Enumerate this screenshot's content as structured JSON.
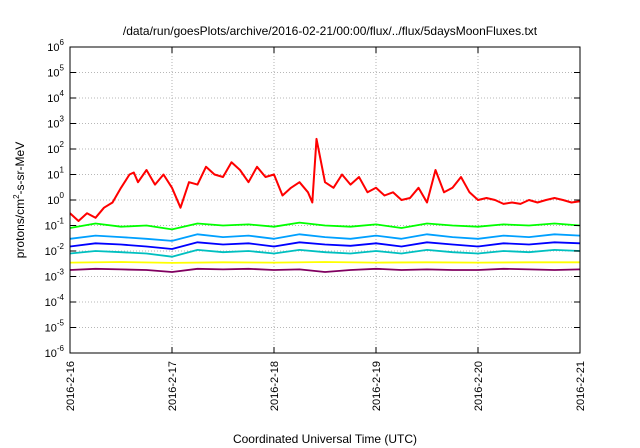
{
  "chart_data": {
    "type": "line",
    "title": "/data/run/goesPlots/archive/2016-02-21/00:00/flux/../flux/5daysMoonFluxes.txt",
    "xlabel": "Coordinated Universal Time (UTC)",
    "ylabel": "protons/cm²-s-sr-MeV",
    "ylabel_parts": {
      "pre": "protons/cm",
      "sup": "2",
      "post": "-s-sr-MeV"
    },
    "y_scale": "log",
    "ylim": [
      1e-06,
      1000000.0
    ],
    "y_ticks": [
      {
        "value": 1e-06,
        "base": "10",
        "exp": "-6"
      },
      {
        "value": 1e-05,
        "base": "10",
        "exp": "-5"
      },
      {
        "value": 0.0001,
        "base": "10",
        "exp": "-4"
      },
      {
        "value": 0.001,
        "base": "10",
        "exp": "-3"
      },
      {
        "value": 0.01,
        "base": "10",
        "exp": "-2"
      },
      {
        "value": 0.1,
        "base": "10",
        "exp": "-1"
      },
      {
        "value": 1.0,
        "base": "10",
        "exp": "0"
      },
      {
        "value": 10.0,
        "base": "10",
        "exp": "1"
      },
      {
        "value": 100.0,
        "base": "10",
        "exp": "2"
      },
      {
        "value": 1000.0,
        "base": "10",
        "exp": "3"
      },
      {
        "value": 10000.0,
        "base": "10",
        "exp": "4"
      },
      {
        "value": 100000.0,
        "base": "10",
        "exp": "5"
      },
      {
        "value": 1000000.0,
        "base": "10",
        "exp": "6"
      }
    ],
    "x_ticks": [
      "2016-2-16",
      "2016-2-17",
      "2016-2-18",
      "2016-2-19",
      "2016-2-20",
      "2016-2-21"
    ],
    "xlim": [
      "2016-2-16",
      "2016-2-21"
    ],
    "grid": true,
    "series": [
      {
        "color": "#ff0000",
        "x": [
          "2016-02-16T00:00",
          "2016-02-16T02:00",
          "2016-02-16T04:00",
          "2016-02-16T06:00",
          "2016-02-16T08:00",
          "2016-02-16T10:00",
          "2016-02-16T12:00",
          "2016-02-16T14:00",
          "2016-02-16T15:00",
          "2016-02-16T16:00",
          "2016-02-16T18:00",
          "2016-02-16T20:00",
          "2016-02-16T22:00",
          "2016-02-17T00:00",
          "2016-02-17T02:00",
          "2016-02-17T04:00",
          "2016-02-17T06:00",
          "2016-02-17T08:00",
          "2016-02-17T10:00",
          "2016-02-17T12:00",
          "2016-02-17T14:00",
          "2016-02-17T16:00",
          "2016-02-17T18:00",
          "2016-02-17T20:00",
          "2016-02-17T22:00",
          "2016-02-18T00:00",
          "2016-02-18T02:00",
          "2016-02-18T04:00",
          "2016-02-18T06:00",
          "2016-02-18T08:00",
          "2016-02-18T09:00",
          "2016-02-18T10:00",
          "2016-02-18T12:00",
          "2016-02-18T14:00",
          "2016-02-18T16:00",
          "2016-02-18T18:00",
          "2016-02-18T20:00",
          "2016-02-18T22:00",
          "2016-02-19T00:00",
          "2016-02-19T02:00",
          "2016-02-19T04:00",
          "2016-02-19T06:00",
          "2016-02-19T08:00",
          "2016-02-19T10:00",
          "2016-02-19T12:00",
          "2016-02-19T14:00",
          "2016-02-19T16:00",
          "2016-02-19T18:00",
          "2016-02-19T20:00",
          "2016-02-19T22:00",
          "2016-02-20T00:00",
          "2016-02-20T02:00",
          "2016-02-20T04:00",
          "2016-02-20T06:00",
          "2016-02-20T08:00",
          "2016-02-20T10:00",
          "2016-02-20T12:00",
          "2016-02-20T14:00",
          "2016-02-20T16:00",
          "2016-02-20T18:00",
          "2016-02-20T20:00",
          "2016-02-20T22:00",
          "2016-02-21T00:00"
        ],
        "y": [
          0.3,
          0.15,
          0.3,
          0.2,
          0.5,
          0.8,
          3,
          10,
          12,
          5,
          15,
          4,
          10,
          3,
          0.5,
          5,
          4,
          20,
          10,
          8,
          30,
          15,
          5,
          20,
          8,
          10,
          1.5,
          3,
          5,
          2,
          0.8,
          250,
          5,
          3,
          10,
          4,
          8,
          2,
          3,
          1.5,
          2,
          1,
          1.2,
          3,
          0.8,
          15,
          2,
          3,
          8,
          2,
          1,
          1.2,
          1,
          0.7,
          0.8,
          0.7,
          1,
          0.8,
          1,
          1.2,
          1,
          0.8,
          0.9
        ]
      },
      {
        "color": "#00ff00",
        "x": [
          "2016-02-16T00:00",
          "2016-02-16T06:00",
          "2016-02-16T12:00",
          "2016-02-16T18:00",
          "2016-02-17T00:00",
          "2016-02-17T06:00",
          "2016-02-17T12:00",
          "2016-02-17T18:00",
          "2016-02-18T00:00",
          "2016-02-18T06:00",
          "2016-02-18T12:00",
          "2016-02-18T18:00",
          "2016-02-19T00:00",
          "2016-02-19T06:00",
          "2016-02-19T12:00",
          "2016-02-19T18:00",
          "2016-02-20T00:00",
          "2016-02-20T06:00",
          "2016-02-20T12:00",
          "2016-02-20T18:00",
          "2016-02-21T00:00"
        ],
        "y": [
          0.08,
          0.12,
          0.09,
          0.1,
          0.07,
          0.12,
          0.1,
          0.11,
          0.09,
          0.13,
          0.1,
          0.09,
          0.11,
          0.08,
          0.12,
          0.1,
          0.09,
          0.11,
          0.1,
          0.12,
          0.1
        ]
      },
      {
        "color": "#00a0ff",
        "x": [
          "2016-02-16T00:00",
          "2016-02-16T06:00",
          "2016-02-16T12:00",
          "2016-02-16T18:00",
          "2016-02-17T00:00",
          "2016-02-17T06:00",
          "2016-02-17T12:00",
          "2016-02-17T18:00",
          "2016-02-18T00:00",
          "2016-02-18T06:00",
          "2016-02-18T12:00",
          "2016-02-18T18:00",
          "2016-02-19T00:00",
          "2016-02-19T06:00",
          "2016-02-19T12:00",
          "2016-02-19T18:00",
          "2016-02-20T00:00",
          "2016-02-20T06:00",
          "2016-02-20T12:00",
          "2016-02-20T18:00",
          "2016-02-21T00:00"
        ],
        "y": [
          0.03,
          0.04,
          0.035,
          0.03,
          0.025,
          0.045,
          0.035,
          0.04,
          0.03,
          0.045,
          0.035,
          0.03,
          0.04,
          0.03,
          0.045,
          0.035,
          0.03,
          0.04,
          0.035,
          0.045,
          0.04
        ]
      },
      {
        "color": "#0000ff",
        "x": [
          "2016-02-16T00:00",
          "2016-02-16T06:00",
          "2016-02-16T12:00",
          "2016-02-16T18:00",
          "2016-02-17T00:00",
          "2016-02-17T06:00",
          "2016-02-17T12:00",
          "2016-02-17T18:00",
          "2016-02-18T00:00",
          "2016-02-18T06:00",
          "2016-02-18T12:00",
          "2016-02-18T18:00",
          "2016-02-19T00:00",
          "2016-02-19T06:00",
          "2016-02-19T12:00",
          "2016-02-19T18:00",
          "2016-02-20T00:00",
          "2016-02-20T06:00",
          "2016-02-20T12:00",
          "2016-02-20T18:00",
          "2016-02-21T00:00"
        ],
        "y": [
          0.015,
          0.02,
          0.018,
          0.015,
          0.012,
          0.022,
          0.018,
          0.02,
          0.015,
          0.022,
          0.018,
          0.016,
          0.02,
          0.015,
          0.022,
          0.018,
          0.015,
          0.02,
          0.018,
          0.022,
          0.02
        ]
      },
      {
        "color": "#00c0c0",
        "x": [
          "2016-02-16T00:00",
          "2016-02-16T06:00",
          "2016-02-16T12:00",
          "2016-02-16T18:00",
          "2016-02-17T00:00",
          "2016-02-17T06:00",
          "2016-02-17T12:00",
          "2016-02-17T18:00",
          "2016-02-18T00:00",
          "2016-02-18T06:00",
          "2016-02-18T12:00",
          "2016-02-18T18:00",
          "2016-02-19T00:00",
          "2016-02-19T06:00",
          "2016-02-19T12:00",
          "2016-02-19T18:00",
          "2016-02-20T00:00",
          "2016-02-20T06:00",
          "2016-02-20T12:00",
          "2016-02-20T18:00",
          "2016-02-21T00:00"
        ],
        "y": [
          0.008,
          0.01,
          0.009,
          0.008,
          0.006,
          0.011,
          0.009,
          0.01,
          0.008,
          0.011,
          0.009,
          0.008,
          0.01,
          0.008,
          0.011,
          0.009,
          0.008,
          0.01,
          0.009,
          0.011,
          0.01
        ]
      },
      {
        "color": "#ffff00",
        "x": [
          "2016-02-16T00:00",
          "2016-02-16T12:00",
          "2016-02-17T00:00",
          "2016-02-17T12:00",
          "2016-02-18T00:00",
          "2016-02-18T12:00",
          "2016-02-19T00:00",
          "2016-02-19T12:00",
          "2016-02-20T00:00",
          "2016-02-20T12:00",
          "2016-02-21T00:00"
        ],
        "y": [
          0.0035,
          0.0037,
          0.0034,
          0.0036,
          0.0035,
          0.0037,
          0.0035,
          0.0036,
          0.0035,
          0.0036,
          0.0036
        ]
      },
      {
        "color": "#800060",
        "x": [
          "2016-02-16T00:00",
          "2016-02-16T06:00",
          "2016-02-16T12:00",
          "2016-02-16T18:00",
          "2016-02-17T00:00",
          "2016-02-17T06:00",
          "2016-02-17T12:00",
          "2016-02-17T18:00",
          "2016-02-18T00:00",
          "2016-02-18T06:00",
          "2016-02-18T12:00",
          "2016-02-18T18:00",
          "2016-02-19T00:00",
          "2016-02-19T06:00",
          "2016-02-19T12:00",
          "2016-02-19T18:00",
          "2016-02-20T00:00",
          "2016-02-20T06:00",
          "2016-02-20T12:00",
          "2016-02-20T18:00",
          "2016-02-21T00:00"
        ],
        "y": [
          0.0018,
          0.002,
          0.0019,
          0.0018,
          0.0015,
          0.002,
          0.0019,
          0.002,
          0.0018,
          0.0019,
          0.0015,
          0.0018,
          0.002,
          0.0018,
          0.0019,
          0.0018,
          0.0018,
          0.002,
          0.0019,
          0.0018,
          0.0019
        ]
      }
    ]
  }
}
